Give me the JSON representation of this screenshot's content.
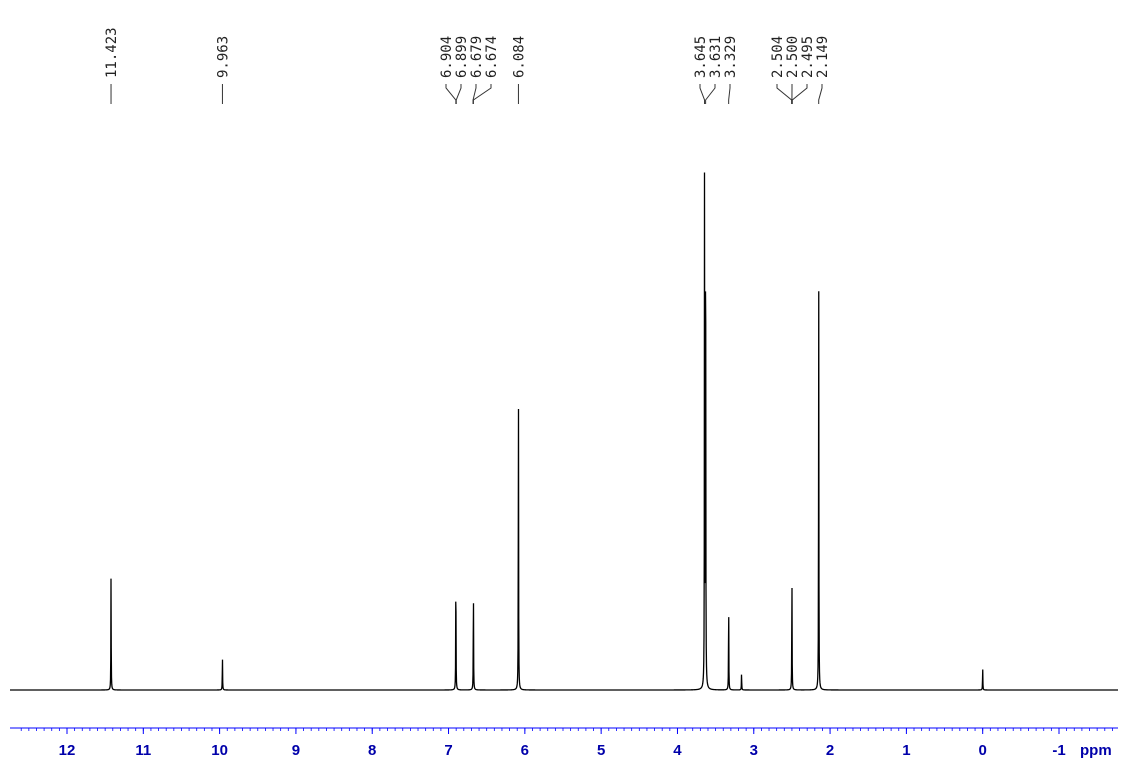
{
  "chart_data": {
    "type": "line",
    "title": "",
    "xlabel": "ppm",
    "ylabel": "",
    "x_reversed": true,
    "xlim": [
      12.6,
      -1.8
    ],
    "ylim": [
      0,
      1
    ],
    "grid": false,
    "x_ticks": [
      12,
      11,
      10,
      9,
      8,
      7,
      6,
      5,
      4,
      3,
      2,
      1,
      0,
      -1
    ],
    "x_tick_labels": [
      "12",
      "11",
      "10",
      "9",
      "8",
      "7",
      "6",
      "5",
      "4",
      "3",
      "2",
      "1",
      "0",
      "-1"
    ],
    "peak_labels": [
      "11.423",
      "9.963",
      "6.904",
      "6.899",
      "6.679",
      "6.674",
      "6.084",
      "3.645",
      "3.631",
      "3.329",
      "2.504",
      "2.500",
      "2.495",
      "2.149"
    ],
    "peak_label_positions": [
      11.423,
      9.963,
      6.904,
      6.899,
      6.679,
      6.674,
      6.084,
      3.645,
      3.631,
      3.329,
      2.504,
      2.5,
      2.495,
      2.149
    ],
    "peaks": [
      {
        "ppm": 11.423,
        "height": 0.2
      },
      {
        "ppm": 9.963,
        "height": 0.06
      },
      {
        "ppm": 6.904,
        "height": 0.225
      },
      {
        "ppm": 6.674,
        "height": 0.19
      },
      {
        "ppm": 6.084,
        "height": 0.56
      },
      {
        "ppm": 3.645,
        "height": 0.96
      },
      {
        "ppm": 3.631,
        "height": 1.0
      },
      {
        "ppm": 3.329,
        "height": 0.16
      },
      {
        "ppm": 3.16,
        "height": 0.03
      },
      {
        "ppm": 2.5,
        "height": 0.215
      },
      {
        "ppm": 2.149,
        "height": 0.74
      },
      {
        "ppm": 0.0,
        "height": 0.04
      }
    ]
  },
  "colors": {
    "spectrum": "#000000",
    "axis": "#0000ff",
    "tick_labels": "#0000aa",
    "peak_labels": "#222222"
  }
}
